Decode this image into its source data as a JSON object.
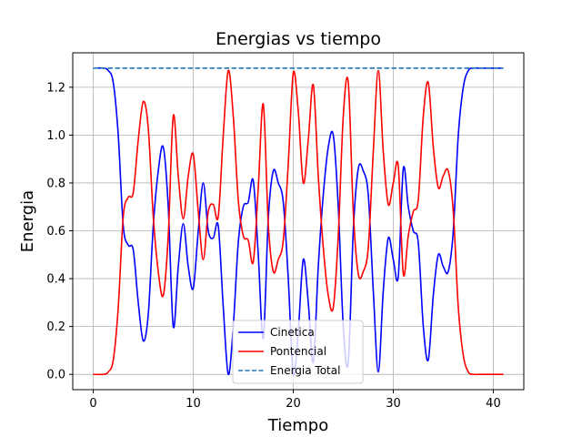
{
  "chart_data": {
    "type": "line",
    "title": "Energias vs tiempo",
    "xlabel": "Tiempo",
    "ylabel": "Energia",
    "xlim": [
      -2.05,
      43.05
    ],
    "ylim": [
      -0.064,
      1.344
    ],
    "xticks": [
      0,
      10,
      20,
      30,
      40
    ],
    "yticks": [
      0.0,
      0.2,
      0.4,
      0.6,
      0.8,
      1.0,
      1.2
    ],
    "grid": true,
    "legend_position": "lower-center",
    "series": [
      {
        "name": "Cinetica",
        "color": "#0000ff",
        "style": "solid",
        "x": [
          0,
          1.0,
          1.5,
          2.0,
          2.5,
          3.0,
          3.5,
          4.0,
          4.5,
          5.0,
          5.5,
          6.0,
          6.5,
          7.0,
          7.5,
          8.0,
          8.5,
          9.0,
          9.5,
          10.0,
          10.5,
          11.0,
          11.5,
          12.0,
          12.5,
          13.0,
          13.5,
          14.0,
          14.5,
          15.0,
          15.5,
          16.0,
          16.5,
          17.0,
          17.5,
          18.0,
          18.5,
          19.0,
          19.5,
          20.0,
          20.5,
          21.0,
          21.5,
          22.0,
          22.5,
          23.0,
          23.5,
          24.0,
          24.5,
          25.0,
          25.5,
          26.0,
          26.5,
          27.0,
          27.5,
          28.0,
          28.5,
          29.0,
          29.5,
          30.0,
          30.5,
          31.0,
          31.5,
          32.0,
          32.5,
          33.0,
          33.5,
          34.0,
          34.5,
          35.0,
          35.5,
          36.0,
          36.5,
          37.0,
          37.5,
          38.0,
          38.5,
          39.0,
          39.5,
          40.0,
          41.0
        ],
        "y": [
          1.28,
          1.28,
          1.27,
          1.22,
          1.0,
          0.62,
          0.54,
          0.52,
          0.3,
          0.14,
          0.25,
          0.62,
          0.85,
          0.95,
          0.7,
          0.2,
          0.45,
          0.63,
          0.45,
          0.36,
          0.6,
          0.8,
          0.6,
          0.57,
          0.62,
          0.28,
          0.0,
          0.2,
          0.55,
          0.7,
          0.72,
          0.81,
          0.5,
          0.15,
          0.65,
          0.85,
          0.8,
          0.72,
          0.4,
          0.0,
          0.18,
          0.48,
          0.3,
          0.05,
          0.45,
          0.75,
          0.95,
          1.0,
          0.7,
          0.2,
          0.05,
          0.6,
          0.86,
          0.85,
          0.75,
          0.35,
          0.01,
          0.35,
          0.57,
          0.48,
          0.41,
          0.86,
          0.7,
          0.6,
          0.55,
          0.2,
          0.06,
          0.33,
          0.5,
          0.45,
          0.43,
          0.6,
          1.0,
          1.2,
          1.27,
          1.28,
          1.28,
          1.28,
          1.28,
          1.28,
          1.28
        ]
      },
      {
        "name": "Pontencial",
        "color": "#ff0000",
        "style": "solid",
        "x": [
          0,
          1.0,
          1.5,
          2.0,
          2.5,
          3.0,
          3.5,
          4.0,
          4.5,
          5.0,
          5.5,
          6.0,
          6.5,
          7.0,
          7.5,
          8.0,
          8.5,
          9.0,
          9.5,
          10.0,
          10.5,
          11.0,
          11.5,
          12.0,
          12.5,
          13.0,
          13.5,
          14.0,
          14.5,
          15.0,
          15.5,
          16.0,
          16.5,
          17.0,
          17.5,
          18.0,
          18.5,
          19.0,
          19.5,
          20.0,
          20.5,
          21.0,
          21.5,
          22.0,
          22.5,
          23.0,
          23.5,
          24.0,
          24.5,
          25.0,
          25.5,
          26.0,
          26.5,
          27.0,
          27.5,
          28.0,
          28.5,
          29.0,
          29.5,
          30.0,
          30.5,
          31.0,
          31.5,
          32.0,
          32.5,
          33.0,
          33.5,
          34.0,
          34.5,
          35.0,
          35.5,
          36.0,
          36.5,
          37.0,
          37.5,
          38.0,
          38.5,
          39.0,
          39.5,
          40.0,
          41.0
        ],
        "y": [
          0.0,
          0.0,
          0.01,
          0.06,
          0.28,
          0.66,
          0.74,
          0.76,
          0.98,
          1.14,
          1.03,
          0.66,
          0.43,
          0.33,
          0.58,
          1.08,
          0.83,
          0.65,
          0.83,
          0.92,
          0.68,
          0.48,
          0.68,
          0.71,
          0.66,
          1.0,
          1.27,
          1.08,
          0.73,
          0.58,
          0.56,
          0.47,
          0.78,
          1.13,
          0.63,
          0.43,
          0.48,
          0.56,
          0.88,
          1.26,
          1.1,
          0.8,
          0.98,
          1.21,
          0.83,
          0.53,
          0.33,
          0.28,
          0.58,
          1.08,
          1.22,
          0.68,
          0.42,
          0.43,
          0.53,
          0.93,
          1.27,
          0.93,
          0.71,
          0.8,
          0.87,
          0.42,
          0.58,
          0.68,
          0.73,
          1.08,
          1.22,
          0.95,
          0.78,
          0.83,
          0.85,
          0.68,
          0.28,
          0.08,
          0.01,
          0.0,
          0.0,
          0.0,
          0.0,
          0.0,
          0.0
        ]
      },
      {
        "name": "Energia Total",
        "color": "#1f77b4",
        "style": "dashed",
        "x": [
          0,
          41.0
        ],
        "y": [
          1.28,
          1.28
        ]
      }
    ]
  }
}
